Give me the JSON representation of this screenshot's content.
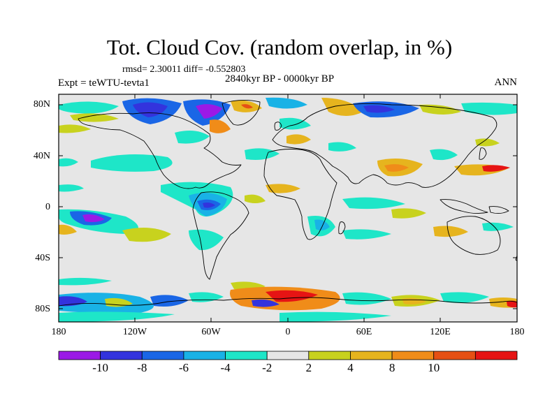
{
  "title": "Tot. Cloud Cov. (random overlap, in %)",
  "stats": "rmsd= 2.30011 diff= -0.552803",
  "period": "2840kyr BP - 0000kyr BP",
  "experiment": "Expt = teWTU-tevta1",
  "season": "ANN",
  "lat_labels": [
    "80N",
    "40N",
    "0",
    "40S",
    "80S"
  ],
  "lon_labels": [
    "180",
    "120W",
    "60W",
    "0",
    "60E",
    "120E",
    "180"
  ],
  "colorbar": {
    "labels": [
      "-10",
      "-8",
      "-6",
      "-4",
      "-2",
      "2",
      "4",
      "8",
      "10"
    ],
    "colors": [
      "#9b19e6",
      "#3333dd",
      "#1a66e6",
      "#19b2e6",
      "#1ee6c8",
      "#e6e6e6",
      "#c8d21e",
      "#e6b41e",
      "#f08c19",
      "#e65014",
      "#e61414"
    ]
  }
}
